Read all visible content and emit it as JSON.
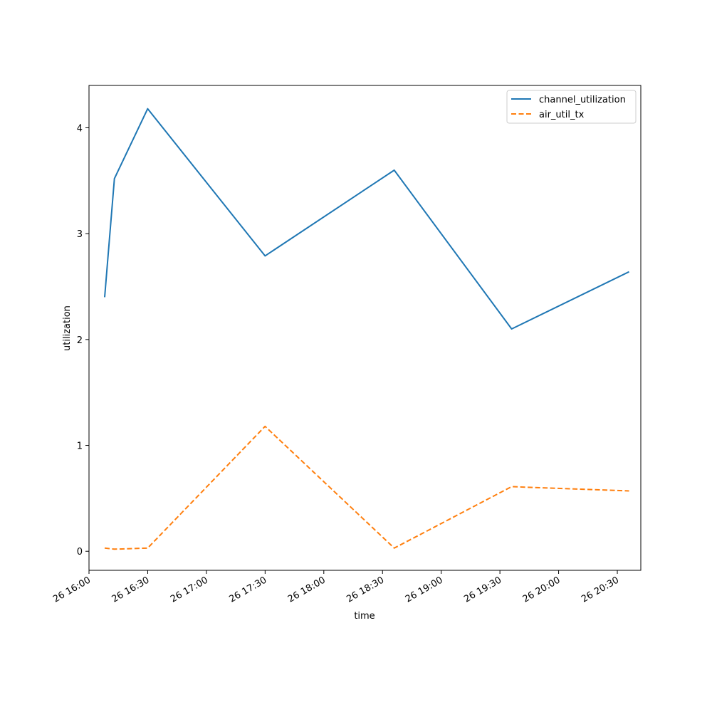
{
  "chart_data": {
    "type": "line",
    "title": "",
    "xlabel": "time",
    "ylabel": "utilization",
    "xlim": [
      "26 16:00",
      "26 20:42"
    ],
    "ylim": [
      -0.18,
      4.4
    ],
    "x_ticks": [
      "26 16:00",
      "26 16:30",
      "26 17:00",
      "26 17:30",
      "26 18:00",
      "26 18:30",
      "26 19:00",
      "26 19:30",
      "26 20:00",
      "26 20:30"
    ],
    "y_ticks": [
      "0",
      "1",
      "2",
      "3",
      "4"
    ],
    "legend_position": "top-right",
    "grid": false,
    "x": [
      "26 16:08",
      "26 16:13",
      "26 16:30",
      "26 17:30",
      "26 18:36",
      "26 19:36",
      "26 20:36"
    ],
    "series": [
      {
        "name": "channel_utilization",
        "values": [
          2.4,
          3.52,
          4.18,
          2.79,
          3.6,
          2.1,
          2.64
        ],
        "color": "#1f77b4",
        "style": "solid"
      },
      {
        "name": "air_util_tx",
        "values": [
          0.03,
          0.02,
          0.03,
          1.18,
          0.03,
          0.61,
          0.57
        ],
        "color": "#ff7f0e",
        "style": "dashed"
      }
    ]
  }
}
